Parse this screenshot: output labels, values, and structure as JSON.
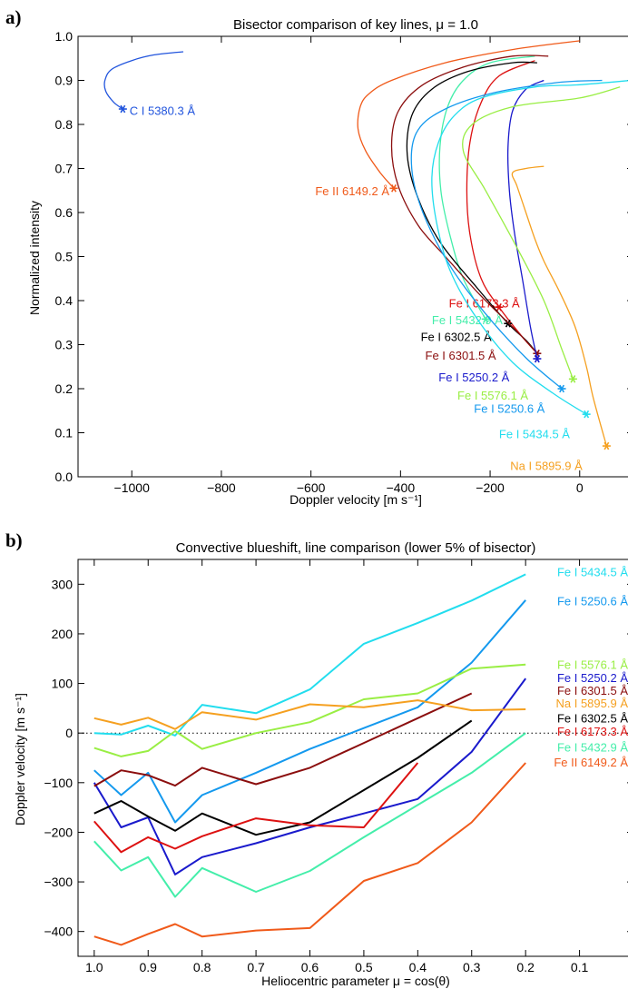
{
  "panels": [
    {
      "letter": "a)",
      "chart_data": {
        "type": "line",
        "title": "Bisector comparison of key lines, μ = 1.0",
        "xlabel": "Doppler velocity [m s⁻¹]",
        "ylabel": "Normalized intensity",
        "xlim": [
          -1120,
          120
        ],
        "ylim": [
          0.0,
          1.0
        ],
        "xticks": [
          -1000,
          -800,
          -600,
          -400,
          -200,
          0
        ],
        "xtick_labels": [
          "−1000",
          "−800",
          "−600",
          "−400",
          "−200",
          "0"
        ],
        "yticks": [
          0.0,
          0.1,
          0.2,
          0.3,
          0.4,
          0.5,
          0.6,
          0.7,
          0.8,
          0.9,
          1.0
        ],
        "ytick_labels": [
          "0.0",
          "0.1",
          "0.2",
          "0.3",
          "0.4",
          "0.5",
          "0.6",
          "0.7",
          "0.8",
          "0.9",
          "1.0"
        ],
        "grid": false,
        "series": [
          {
            "name": "C I 5380.3 Å",
            "color": "#2255dd",
            "label_at": [
              -1005,
              0.83
            ],
            "label_anchor": "start",
            "marker": [
              -1020,
              0.835
            ],
            "points": [
              [
                -1020,
                0.835
              ],
              [
                -1040,
                0.85
              ],
              [
                -1058,
                0.875
              ],
              [
                -1060,
                0.9
              ],
              [
                -1045,
                0.925
              ],
              [
                -1000,
                0.945
              ],
              [
                -950,
                0.958
              ],
              [
                -885,
                0.965
              ]
            ]
          },
          {
            "name": "Fe II 6149.2 Å",
            "color": "#f05a1a",
            "label_at": [
              -425,
              0.647
            ],
            "label_anchor": "end",
            "marker": [
              -415,
              0.655
            ],
            "points": [
              [
                -415,
                0.655
              ],
              [
                -445,
                0.69
              ],
              [
                -478,
                0.74
              ],
              [
                -495,
                0.79
              ],
              [
                -490,
                0.84
              ],
              [
                -470,
                0.87
              ],
              [
                -420,
                0.9
              ],
              [
                -300,
                0.94
              ],
              [
                -150,
                0.97
              ],
              [
                0,
                0.99
              ]
            ]
          },
          {
            "name": "Fe I 6173.3 Å",
            "color": "#dd1111",
            "label_at": [
              -292,
              0.393
            ],
            "label_anchor": "start",
            "marker": [
              -180,
              0.385
            ],
            "points": [
              [
                -95,
                0.28
              ],
              [
                -130,
                0.32
              ],
              [
                -180,
                0.385
              ],
              [
                -220,
                0.45
              ],
              [
                -245,
                0.55
              ],
              [
                -252,
                0.65
              ],
              [
                -245,
                0.76
              ],
              [
                -220,
                0.85
              ],
              [
                -180,
                0.91
              ],
              [
                -100,
                0.945
              ]
            ]
          },
          {
            "name": "Fe I 5432.9 Å",
            "color": "#44eeaa",
            "label_at": [
              -330,
              0.355
            ],
            "label_anchor": "start",
            "marker": [
              -210,
              0.358
            ],
            "points": [
              [
                -210,
                0.358
              ],
              [
                -260,
                0.45
              ],
              [
                -290,
                0.55
              ],
              [
                -310,
                0.65
              ],
              [
                -312,
                0.75
              ],
              [
                -295,
                0.84
              ],
              [
                -260,
                0.9
              ],
              [
                -200,
                0.94
              ],
              [
                -100,
                0.955
              ]
            ]
          },
          {
            "name": "Fe I 6302.5 Å",
            "color": "#000000",
            "label_at": [
              -355,
              0.317
            ],
            "label_anchor": "start",
            "marker": [
              -160,
              0.348
            ],
            "points": [
              [
                -95,
                0.28
              ],
              [
                -120,
                0.31
              ],
              [
                -160,
                0.348
              ],
              [
                -230,
                0.43
              ],
              [
                -310,
                0.53
              ],
              [
                -360,
                0.63
              ],
              [
                -385,
                0.73
              ],
              [
                -375,
                0.82
              ],
              [
                -330,
                0.88
              ],
              [
                -250,
                0.92
              ],
              [
                -150,
                0.94
              ],
              [
                -95,
                0.94
              ]
            ]
          },
          {
            "name": "Fe I 6301.5 Å",
            "color": "#8b0e0e",
            "label_at": [
              -345,
              0.274
            ],
            "label_anchor": "start",
            "marker": [
              -95,
              0.28
            ],
            "points": [
              [
                -95,
                0.28
              ],
              [
                -140,
                0.33
              ],
              [
                -220,
                0.41
              ],
              [
                -300,
                0.5
              ],
              [
                -360,
                0.57
              ],
              [
                -405,
                0.66
              ],
              [
                -420,
                0.75
              ],
              [
                -405,
                0.83
              ],
              [
                -350,
                0.89
              ],
              [
                -260,
                0.93
              ],
              [
                -150,
                0.955
              ],
              [
                -70,
                0.955
              ]
            ]
          },
          {
            "name": "Fe I 5250.2 Å",
            "color": "#1a1acc",
            "label_at": [
              -315,
              0.225
            ],
            "label_anchor": "start",
            "marker": [
              -95,
              0.268
            ],
            "points": [
              [
                -95,
                0.268
              ],
              [
                -110,
                0.34
              ],
              [
                -128,
                0.45
              ],
              [
                -145,
                0.55
              ],
              [
                -157,
                0.65
              ],
              [
                -160,
                0.75
              ],
              [
                -150,
                0.83
              ],
              [
                -120,
                0.88
              ],
              [
                -80,
                0.9
              ]
            ]
          },
          {
            "name": "Fe I 5576.1 Å",
            "color": "#99ee44",
            "label_at": [
              -273,
              0.183
            ],
            "label_anchor": "start",
            "marker": [
              -15,
              0.222
            ],
            "points": [
              [
                -15,
                0.222
              ],
              [
                -40,
                0.29
              ],
              [
                -80,
                0.4
              ],
              [
                -140,
                0.52
              ],
              [
                -210,
                0.65
              ],
              [
                -260,
                0.74
              ],
              [
                -240,
                0.8
              ],
              [
                -150,
                0.84
              ],
              [
                0,
                0.86
              ],
              [
                90,
                0.885
              ]
            ]
          },
          {
            "name": "Fe I 5250.6 Å",
            "color": "#1499ee",
            "label_at": [
              -236,
              0.154
            ],
            "label_anchor": "start",
            "marker": [
              -40,
              0.2
            ],
            "points": [
              [
                -40,
                0.2
              ],
              [
                -120,
                0.27
              ],
              [
                -210,
                0.37
              ],
              [
                -290,
                0.48
              ],
              [
                -350,
                0.6
              ],
              [
                -375,
                0.7
              ],
              [
                -365,
                0.78
              ],
              [
                -310,
                0.83
              ],
              [
                -200,
                0.87
              ],
              [
                -50,
                0.895
              ],
              [
                50,
                0.9
              ]
            ]
          },
          {
            "name": "Fe I 5434.5 Å",
            "color": "#22ddee",
            "label_at": [
              -180,
              0.096
            ],
            "label_anchor": "start",
            "marker": [
              15,
              0.142
            ],
            "points": [
              [
                15,
                0.142
              ],
              [
                -60,
                0.19
              ],
              [
                -150,
                0.26
              ],
              [
                -230,
                0.36
              ],
              [
                -290,
                0.47
              ],
              [
                -320,
                0.58
              ],
              [
                -330,
                0.68
              ],
              [
                -315,
                0.76
              ],
              [
                -280,
                0.82
              ],
              [
                -220,
                0.86
              ],
              [
                -100,
                0.885
              ],
              [
                0,
                0.89
              ],
              [
                115,
                0.9
              ]
            ]
          },
          {
            "name": "Na I 5895.9 Å",
            "color": "#f5a020",
            "label_at": [
              -155,
              0.024
            ],
            "label_anchor": "start",
            "marker": [
              60,
              0.07
            ],
            "points": [
              [
                60,
                0.07
              ],
              [
                30,
                0.18
              ],
              [
                15,
                0.25
              ],
              [
                -10,
                0.34
              ],
              [
                -45,
                0.42
              ],
              [
                -80,
                0.49
              ],
              [
                -100,
                0.54
              ],
              [
                -120,
                0.6
              ],
              [
                -140,
                0.66
              ],
              [
                -150,
                0.69
              ],
              [
                -120,
                0.7
              ],
              [
                -80,
                0.705
              ]
            ]
          }
        ]
      }
    },
    {
      "letter": "b)",
      "chart_data": {
        "type": "line",
        "title": "Convective blueshift, line comparison (lower 5% of bisector)",
        "xlabel": "Heliocentric parameter μ = cos(θ)",
        "ylabel": "Doppler velocity [m s⁻¹]",
        "xlim": [
          1.03,
          0.0
        ],
        "ylim": [
          -450,
          350
        ],
        "xticks": [
          1.0,
          0.9,
          0.8,
          0.7,
          0.6,
          0.5,
          0.4,
          0.3,
          0.2,
          0.1
        ],
        "xtick_labels": [
          "1.0",
          "0.9",
          "0.8",
          "0.7",
          "0.6",
          "0.5",
          "0.4",
          "0.3",
          "0.2",
          "0.1"
        ],
        "yticks": [
          -400,
          -300,
          -200,
          -100,
          0,
          100,
          200,
          300
        ],
        "ytick_labels": [
          "−400",
          "−300",
          "−200",
          "−100",
          "0",
          "100",
          "200",
          "300"
        ],
        "zero_line": "dotted",
        "x": [
          1.0,
          0.95,
          0.9,
          0.85,
          0.8,
          0.7,
          0.6,
          0.5,
          0.4,
          0.3,
          0.2
        ],
        "series": [
          {
            "name": "Fe I 5434.5 Å",
            "color": "#22ddee",
            "label_y": 323,
            "values": [
              0,
              -3,
              15,
              -5,
              57,
              40,
              88,
              180,
              222,
              267,
              320
            ]
          },
          {
            "name": "Fe I 5250.6 Å",
            "color": "#1499ee",
            "label_y": 265,
            "values": [
              -75,
              -125,
              -80,
              -180,
              -125,
              -80,
              -32,
              10,
              52,
              142,
              268
            ]
          },
          {
            "name": "Fe I 5576.1 Å",
            "color": "#99ee44",
            "label_y": 137,
            "values": [
              -30,
              -47,
              -36,
              4,
              -32,
              0,
              22,
              68,
              80,
              130,
              138
            ]
          },
          {
            "name": "Fe I 5250.2 Å",
            "color": "#1a1acc",
            "label_y": 110,
            "values": [
              -100,
              -190,
              -170,
              -285,
              -250,
              -222,
              -190,
              -162,
              -133,
              -38,
              110
            ]
          },
          {
            "name": "Fe I 6301.5 Å",
            "color": "#8b0e0e",
            "label_y": 85,
            "values": [
              -107,
              -75,
              -85,
              -106,
              -70,
              -103,
              -70,
              -20,
              30,
              80,
              null
            ]
          },
          {
            "name": "Na I 5895.9 Å",
            "color": "#f5a020",
            "label_y": 59,
            "values": [
              30,
              17,
              31,
              8,
              42,
              27,
              58,
              52,
              66,
              46,
              48
            ]
          },
          {
            "name": "Fe I 6302.5 Å",
            "color": "#000000",
            "label_y": 29,
            "values": [
              -162,
              -137,
              -168,
              -197,
              -162,
              -205,
              -180,
              -115,
              -50,
              25,
              null
            ]
          },
          {
            "name": "Fe I 6173.3 Å",
            "color": "#dd1111",
            "label_y": 2,
            "values": [
              -178,
              -240,
              -210,
              -233,
              -208,
              -172,
              -186,
              -190,
              -60,
              null,
              null
            ]
          },
          {
            "name": "Fe I 5432.9 Å",
            "color": "#44eeaa",
            "label_y": -30,
            "values": [
              -218,
              -277,
              -250,
              -330,
              -272,
              -320,
              -278,
              -210,
              -145,
              -80,
              0
            ]
          },
          {
            "name": "Fe II 6149.2 Å",
            "color": "#f05a1a",
            "label_y": -60,
            "values": [
              -410,
              -427,
              -405,
              -385,
              -410,
              -398,
              -393,
              -298,
              -262,
              -180,
              -60
            ]
          }
        ]
      }
    }
  ]
}
